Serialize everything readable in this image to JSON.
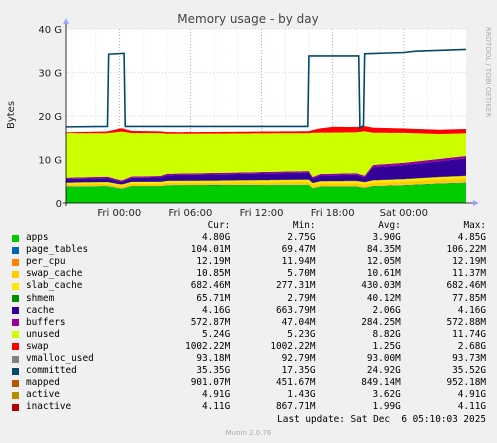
{
  "chart_data": {
    "type": "area",
    "title": "Memory usage - by day",
    "ylabel": "Bytes",
    "side_label": "RRDTOOL / TOBI OETIKER",
    "ylim": [
      0,
      40
    ],
    "y_ticks": [
      "0",
      "10 G",
      "20 G",
      "30 G",
      "40 G"
    ],
    "x_ticks": [
      "Fri 00:00",
      "Fri 06:00",
      "Fri 12:00",
      "Fri 18:00",
      "Sat 00:00"
    ],
    "x_tick_hours": [
      0,
      6,
      12,
      18,
      24
    ],
    "x_range_hours": [
      -4.5,
      29.25
    ],
    "grid": true,
    "series_units": "GB",
    "stacked_series": [
      {
        "name": "apps",
        "color": "#00cc00",
        "points": [
          [
            -4.5,
            3.7
          ],
          [
            -1,
            3.8
          ],
          [
            0.2,
            3.2
          ],
          [
            1,
            3.8
          ],
          [
            3.5,
            3.8
          ],
          [
            4,
            4.0
          ],
          [
            16,
            4.1
          ],
          [
            16.3,
            3.3
          ],
          [
            17,
            3.7
          ],
          [
            20,
            3.7
          ],
          [
            20.7,
            3.4
          ],
          [
            21.4,
            3.8
          ],
          [
            24,
            4.0
          ],
          [
            27,
            4.4
          ],
          [
            29.25,
            4.6
          ]
        ]
      },
      {
        "name": "page_tables",
        "color": "#0066b3",
        "points": [
          [
            -4.5,
            0.09
          ],
          [
            29.25,
            0.1
          ]
        ]
      },
      {
        "name": "per_cpu",
        "color": "#ff8000",
        "points": [
          [
            -4.5,
            0.01
          ],
          [
            29.25,
            0.01
          ]
        ]
      },
      {
        "name": "swap_cache",
        "color": "#ffcc00",
        "points": [
          [
            -4.5,
            0.5
          ],
          [
            10,
            0.55
          ],
          [
            20,
            0.7
          ],
          [
            29.25,
            0.9
          ]
        ]
      },
      {
        "name": "slab_cache",
        "color": "#ffe600",
        "points": [
          [
            -4.5,
            0.35
          ],
          [
            29.25,
            0.6
          ]
        ]
      },
      {
        "name": "shmem",
        "color": "#008f00",
        "points": [
          [
            -4.5,
            0.05
          ],
          [
            29.25,
            0.06
          ]
        ]
      },
      {
        "name": "cache",
        "color": "#330099",
        "points": [
          [
            -4.5,
            0.8
          ],
          [
            -1,
            0.9
          ],
          [
            0.2,
            0.6
          ],
          [
            1,
            0.9
          ],
          [
            3.5,
            1.0
          ],
          [
            4,
            1.3
          ],
          [
            12,
            1.5
          ],
          [
            16,
            1.6
          ],
          [
            16.3,
            1.0
          ],
          [
            17,
            1.3
          ],
          [
            20,
            1.4
          ],
          [
            20.7,
            1.1
          ],
          [
            21.4,
            3.0
          ],
          [
            24,
            3.2
          ],
          [
            27,
            3.6
          ],
          [
            29.25,
            4.0
          ]
        ]
      },
      {
        "name": "buffers",
        "color": "#990099",
        "points": [
          [
            -4.5,
            0.3
          ],
          [
            20.7,
            0.35
          ],
          [
            21.4,
            0.5
          ],
          [
            29.25,
            0.55
          ]
        ]
      },
      {
        "name": "unused",
        "color": "#ccff00",
        "points": [
          [
            -4.5,
            10.25
          ],
          [
            -1,
            10.0
          ],
          [
            0.2,
            11.25
          ],
          [
            1,
            10.0
          ],
          [
            3.5,
            9.85
          ],
          [
            4,
            9.2
          ],
          [
            12,
            8.9
          ],
          [
            16,
            8.7
          ],
          [
            16.3,
            10.2
          ],
          [
            17,
            9.5
          ],
          [
            20,
            9.4
          ],
          [
            20.7,
            10.2
          ],
          [
            21.4,
            7.4
          ],
          [
            24,
            6.9
          ],
          [
            27,
            5.7
          ],
          [
            29.25,
            5.2
          ]
        ]
      },
      {
        "name": "swap",
        "color": "#ff0000",
        "points": [
          [
            -4.5,
            0.2
          ],
          [
            -1,
            0.4
          ],
          [
            0.2,
            0.8
          ],
          [
            1,
            0.5
          ],
          [
            5,
            0.35
          ],
          [
            16,
            0.45
          ],
          [
            17,
            1.0
          ],
          [
            18,
            1.3
          ],
          [
            21,
            1.2
          ],
          [
            24,
            1.0
          ],
          [
            29.25,
            1.0
          ]
        ]
      }
    ],
    "line_series": [
      {
        "name": "committed",
        "color": "#00496b",
        "points": [
          [
            -4.5,
            17.5
          ],
          [
            -1,
            17.6
          ],
          [
            -0.9,
            34.2
          ],
          [
            0.4,
            34.4
          ],
          [
            0.5,
            17.6
          ],
          [
            15.9,
            17.6
          ],
          [
            16.0,
            33.8
          ],
          [
            20.2,
            33.8
          ],
          [
            20.3,
            17.2
          ],
          [
            20.6,
            17.8
          ],
          [
            20.7,
            34.3
          ],
          [
            24,
            34.6
          ],
          [
            25,
            34.9
          ],
          [
            29.25,
            35.3
          ]
        ]
      }
    ],
    "legend_header": {
      "cur": "Cur:",
      "min": "Min:",
      "avg": "Avg:",
      "max": "Max:"
    },
    "legend": [
      {
        "name": "apps",
        "color": "#00cc00",
        "cur": "4.80G",
        "min": "2.75G",
        "avg": "3.90G",
        "max": "4.85G"
      },
      {
        "name": "page_tables",
        "color": "#0066b3",
        "cur": "104.01M",
        "min": "69.47M",
        "avg": "84.35M",
        "max": "106.22M"
      },
      {
        "name": "per_cpu",
        "color": "#ff8000",
        "cur": "12.19M",
        "min": "11.94M",
        "avg": "12.05M",
        "max": "12.19M"
      },
      {
        "name": "swap_cache",
        "color": "#ffcc00",
        "cur": "10.85M",
        "min": "5.70M",
        "avg": "10.61M",
        "max": "11.37M"
      },
      {
        "name": "slab_cache",
        "color": "#ffe600",
        "cur": "682.46M",
        "min": "277.31M",
        "avg": "430.03M",
        "max": "682.46M"
      },
      {
        "name": "shmem",
        "color": "#008f00",
        "cur": "65.71M",
        "min": "2.79M",
        "avg": "40.12M",
        "max": "77.85M"
      },
      {
        "name": "cache",
        "color": "#330099",
        "cur": "4.16G",
        "min": "663.79M",
        "avg": "2.06G",
        "max": "4.16G"
      },
      {
        "name": "buffers",
        "color": "#990099",
        "cur": "572.87M",
        "min": "47.04M",
        "avg": "284.25M",
        "max": "572.88M"
      },
      {
        "name": "unused",
        "color": "#ccff00",
        "cur": "5.24G",
        "min": "5.23G",
        "avg": "8.82G",
        "max": "11.74G"
      },
      {
        "name": "swap",
        "color": "#ff0000",
        "cur": "1002.22M",
        "min": "1002.22M",
        "avg": "1.25G",
        "max": "2.68G"
      },
      {
        "name": "vmalloc_used",
        "color": "#808080",
        "cur": "93.18M",
        "min": "92.79M",
        "avg": "93.00M",
        "max": "93.73M"
      },
      {
        "name": "committed",
        "color": "#00496b",
        "cur": "35.35G",
        "min": "17.35G",
        "avg": "24.92G",
        "max": "35.52G"
      },
      {
        "name": "mapped",
        "color": "#b35a00",
        "cur": "901.07M",
        "min": "451.67M",
        "avg": "849.14M",
        "max": "952.18M"
      },
      {
        "name": "active",
        "color": "#b38f00",
        "cur": "4.91G",
        "min": "1.43G",
        "avg": "3.62G",
        "max": "4.91G"
      },
      {
        "name": "inactive",
        "color": "#b30000",
        "cur": "4.11G",
        "min": "867.71M",
        "avg": "1.99G",
        "max": "4.11G"
      }
    ],
    "last_update": "Last update: Sat Dec  6 05:10:03 2025",
    "footer": "Munin 2.0.76"
  }
}
